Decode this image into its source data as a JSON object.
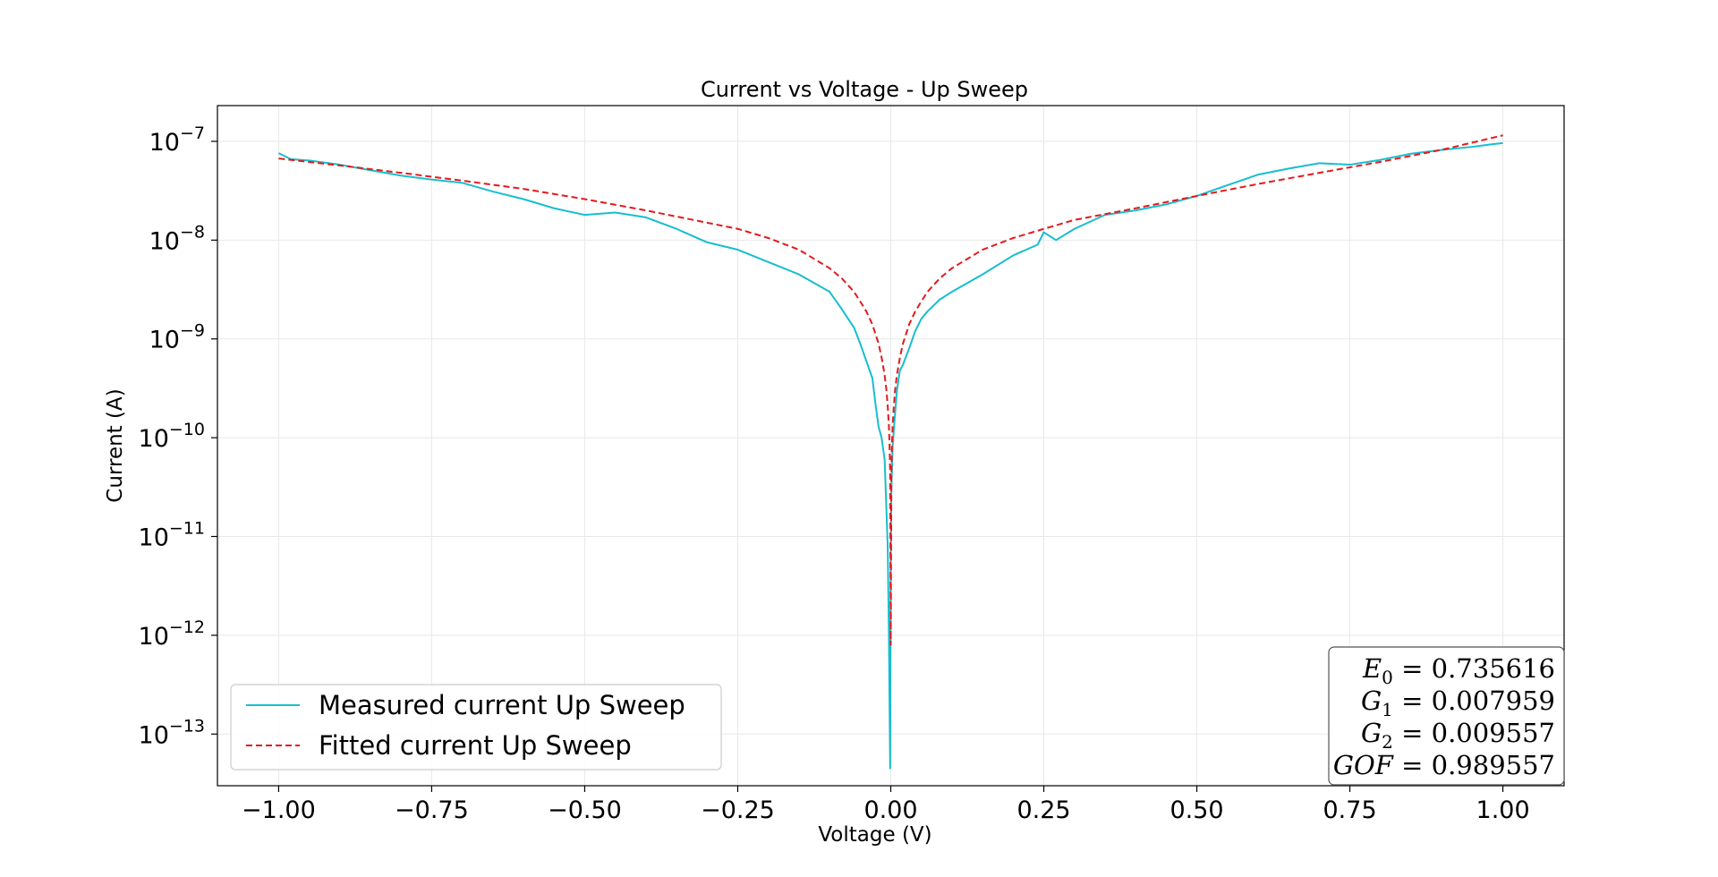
{
  "chart_data": {
    "type": "line",
    "title": "Current vs Voltage - Up Sweep",
    "xlabel": "Voltage (V)",
    "ylabel": "Current (A)",
    "xlim": [
      -1.1,
      1.1
    ],
    "ylim": [
      3e-14,
      2.3e-07
    ],
    "yscale": "log",
    "grid": true,
    "x_ticks": [
      -1.0,
      -0.75,
      -0.5,
      -0.25,
      0.0,
      0.25,
      0.5,
      0.75,
      1.0
    ],
    "x_tick_labels": [
      "−1.00",
      "−0.75",
      "−0.50",
      "−0.25",
      "0.00",
      "0.25",
      "0.50",
      "0.75",
      "1.00"
    ],
    "y_ticks": [
      -7,
      -8,
      -9,
      -10,
      -11,
      -12,
      -13
    ],
    "y_tick_base": "10",
    "y_tick_exponents": [
      "−7",
      "−8",
      "−9",
      "−10",
      "−11",
      "−12",
      "−13"
    ],
    "legend_position": "lower-left",
    "series": [
      {
        "name": "Measured current Up Sweep",
        "color": "#17becf",
        "style": "solid",
        "x": [
          -1.0,
          -0.98,
          -0.95,
          -0.9,
          -0.85,
          -0.8,
          -0.75,
          -0.7,
          -0.65,
          -0.6,
          -0.55,
          -0.5,
          -0.45,
          -0.4,
          -0.35,
          -0.3,
          -0.25,
          -0.2,
          -0.15,
          -0.1,
          -0.08,
          -0.06,
          -0.05,
          -0.04,
          -0.03,
          -0.025,
          -0.02,
          -0.015,
          -0.01,
          -0.005,
          -0.003,
          -0.001,
          0.0,
          0.001,
          0.003,
          0.005,
          0.01,
          0.015,
          0.02,
          0.03,
          0.04,
          0.05,
          0.06,
          0.08,
          0.1,
          0.15,
          0.2,
          0.24,
          0.25,
          0.27,
          0.3,
          0.35,
          0.4,
          0.45,
          0.5,
          0.55,
          0.6,
          0.65,
          0.7,
          0.75,
          0.8,
          0.85,
          0.9,
          0.95,
          0.98,
          1.0
        ],
        "y": [
          7.6e-08,
          6.6e-08,
          6.4e-08,
          5.8e-08,
          5.1e-08,
          4.5e-08,
          4.1e-08,
          3.8e-08,
          3.1e-08,
          2.6e-08,
          2.1e-08,
          1.8e-08,
          1.9e-08,
          1.7e-08,
          1.3e-08,
          9.5e-09,
          8e-09,
          6e-09,
          4.5e-09,
          3e-09,
          2e-09,
          1.3e-09,
          9e-10,
          6e-10,
          4e-10,
          2.2e-10,
          1.3e-10,
          1e-10,
          6e-11,
          8e-12,
          1e-12,
          4.5e-14,
          5e-12,
          3e-11,
          8e-11,
          1.2e-10,
          3e-10,
          4.8e-10,
          5.5e-10,
          8e-10,
          1.2e-09,
          1.6e-09,
          1.9e-09,
          2.5e-09,
          3e-09,
          4.5e-09,
          7e-09,
          9e-09,
          1.2e-08,
          1e-08,
          1.3e-08,
          1.8e-08,
          2e-08,
          2.3e-08,
          2.8e-08,
          3.6e-08,
          4.6e-08,
          5.3e-08,
          6e-08,
          5.8e-08,
          6.5e-08,
          7.5e-08,
          8.2e-08,
          8.8e-08,
          9.3e-08,
          9.6e-08
        ]
      },
      {
        "name": "Fitted current Up Sweep",
        "color": "#e31a1c",
        "style": "dashed",
        "x": [
          -1.0,
          -0.9,
          -0.8,
          -0.7,
          -0.6,
          -0.5,
          -0.4,
          -0.3,
          -0.25,
          -0.2,
          -0.15,
          -0.1,
          -0.08,
          -0.06,
          -0.05,
          -0.04,
          -0.03,
          -0.02,
          -0.015,
          -0.01,
          -0.007,
          -0.005,
          -0.003,
          -0.002,
          -0.001,
          0.0,
          0.001,
          0.002,
          0.003,
          0.005,
          0.007,
          0.01,
          0.015,
          0.02,
          0.03,
          0.04,
          0.05,
          0.06,
          0.08,
          0.1,
          0.15,
          0.2,
          0.25,
          0.3,
          0.4,
          0.5,
          0.6,
          0.7,
          0.8,
          0.9,
          1.0
        ],
        "y": [
          6.7e-08,
          5.7e-08,
          4.8e-08,
          4e-08,
          3.3e-08,
          2.6e-08,
          2e-08,
          1.5e-08,
          1.3e-08,
          1.05e-08,
          8e-09,
          5.2e-09,
          4.1e-09,
          3e-09,
          2.4e-09,
          1.9e-09,
          1.4e-09,
          9e-10,
          6.5e-10,
          4.3e-10,
          3e-10,
          2.1e-10,
          1.3e-10,
          8.5e-11,
          4.3e-11,
          8e-13,
          4.3e-11,
          8.5e-11,
          1.3e-10,
          2.1e-10,
          3e-10,
          4.3e-10,
          6.5e-10,
          9e-10,
          1.4e-09,
          1.9e-09,
          2.4e-09,
          3e-09,
          4.1e-09,
          5.2e-09,
          8e-09,
          1.05e-08,
          1.3e-08,
          1.6e-08,
          2.1e-08,
          2.8e-08,
          3.7e-08,
          4.8e-08,
          6.2e-08,
          8.2e-08,
          1.15e-07
        ]
      }
    ],
    "fit_parameters": [
      {
        "symbol": "E",
        "subscript": "0",
        "value": "0.735616"
      },
      {
        "symbol": "G",
        "subscript": "1",
        "value": "0.007959"
      },
      {
        "symbol": "G",
        "subscript": "2",
        "value": "0.009557"
      },
      {
        "symbol": "GOF",
        "subscript": "",
        "value": "0.989557"
      }
    ]
  }
}
